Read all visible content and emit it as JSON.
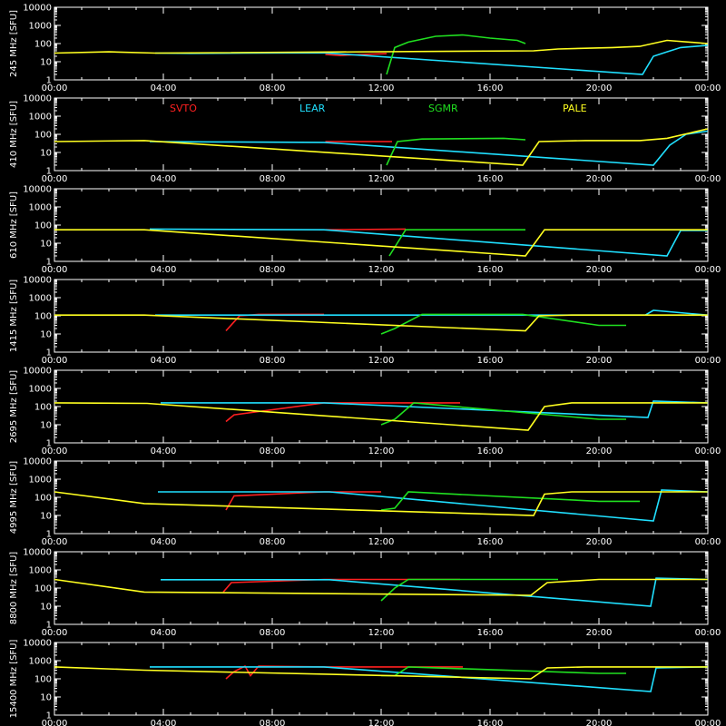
{
  "chart_data": [
    {
      "type": "line",
      "ylabel": "245 MHz [SFU]",
      "xlim": [
        0,
        24
      ],
      "ylim": [
        1,
        10000
      ],
      "y_scale": "log",
      "x_tick_labels": [
        "00:00",
        "04:00",
        "08:00",
        "12:00",
        "16:00",
        "20:00",
        "00:00"
      ],
      "y_tick_labels": [
        "1",
        "10",
        "100",
        "1000",
        "10000"
      ],
      "series": [
        {
          "name": "SVTO",
          "color": "#ff2020",
          "x": [
            9.95,
            10.5,
            11.0,
            11.6,
            12.2
          ],
          "y": [
            25,
            22,
            24,
            26,
            28
          ]
        },
        {
          "name": "LEAR",
          "color": "#20e0ff",
          "x": [
            3.7,
            5,
            7,
            9.9,
            21.6,
            22.0,
            22.5,
            23.0,
            23.99
          ],
          "y": [
            30,
            29,
            30,
            31,
            2,
            20,
            35,
            60,
            80
          ]
        },
        {
          "name": "SGMR",
          "color": "#20e020",
          "x": [
            12.2,
            12.5,
            13.0,
            14.0,
            15.0,
            16.0,
            17.0,
            17.3
          ],
          "y": [
            2,
            60,
            120,
            250,
            300,
            200,
            150,
            100
          ]
        },
        {
          "name": "PALE",
          "color": "#ffff20",
          "x": [
            0,
            2,
            3.7,
            17.6,
            18.5,
            19.5,
            20.5,
            21.5,
            22.5,
            23.99
          ],
          "y": [
            30,
            35,
            30,
            40,
            50,
            55,
            60,
            70,
            150,
            100
          ]
        }
      ]
    },
    {
      "type": "line",
      "ylabel": "410 MHz [SFU]",
      "xlim": [
        0,
        24
      ],
      "ylim": [
        1,
        10000
      ],
      "y_scale": "log",
      "x_tick_labels": [
        "00:00",
        "04:00",
        "08:00",
        "12:00",
        "16:00",
        "20:00",
        "00:00"
      ],
      "y_tick_labels": [
        "1",
        "10",
        "100",
        "1000",
        "10000"
      ],
      "series": [
        {
          "name": "SVTO",
          "color": "#ff2020",
          "x": [
            9.95,
            11.0,
            12.4
          ],
          "y": [
            40,
            40,
            40
          ]
        },
        {
          "name": "LEAR",
          "color": "#20e0ff",
          "x": [
            3.5,
            6,
            9.9,
            22.0,
            22.6,
            23.2,
            23.99
          ],
          "y": [
            40,
            38,
            36,
            2,
            25,
            100,
            150
          ]
        },
        {
          "name": "SGMR",
          "color": "#20e020",
          "x": [
            12.2,
            12.6,
            13.5,
            16.5,
            17.3
          ],
          "y": [
            2,
            40,
            55,
            60,
            50
          ]
        },
        {
          "name": "PALE",
          "color": "#ffff20",
          "x": [
            0,
            3.3,
            17.2,
            17.8,
            19.5,
            21.5,
            22.5,
            23.99
          ],
          "y": [
            40,
            45,
            2,
            40,
            45,
            45,
            60,
            200
          ]
        }
      ]
    },
    {
      "type": "line",
      "ylabel": "610 MHz [SFU]",
      "xlim": [
        0,
        24
      ],
      "ylim": [
        1,
        10000
      ],
      "y_scale": "log",
      "x_tick_labels": [
        "00:00",
        "04:00",
        "08:00",
        "12:00",
        "16:00",
        "20:00",
        "00:00"
      ],
      "y_tick_labels": [
        "1",
        "10",
        "100",
        "1000",
        "10000"
      ],
      "series": [
        {
          "name": "SVTO",
          "color": "#ff2020",
          "x": [
            9.95,
            12.9
          ],
          "y": [
            55,
            60
          ]
        },
        {
          "name": "LEAR",
          "color": "#20e0ff",
          "x": [
            3.5,
            9.9,
            22.5,
            23.0,
            23.99
          ],
          "y": [
            60,
            55,
            2,
            50,
            50
          ]
        },
        {
          "name": "SGMR",
          "color": "#20e020",
          "x": [
            12.3,
            12.9,
            17.3
          ],
          "y": [
            2,
            55,
            55
          ]
        },
        {
          "name": "PALE",
          "color": "#ffff20",
          "x": [
            0,
            3.3,
            17.3,
            18.0,
            21.5,
            23.99
          ],
          "y": [
            55,
            55,
            2,
            55,
            55,
            55
          ]
        }
      ]
    },
    {
      "type": "line",
      "ylabel": "1415 MHz [SFU]",
      "xlim": [
        0,
        24
      ],
      "ylim": [
        1,
        10000
      ],
      "y_scale": "log",
      "x_tick_labels": [
        "00:00",
        "04:00",
        "08:00",
        "12:00",
        "16:00",
        "20:00",
        "00:00"
      ],
      "y_tick_labels": [
        "1",
        "10",
        "100",
        "1000",
        "10000"
      ],
      "series": [
        {
          "name": "SVTO",
          "color": "#ff2020",
          "x": [
            6.3,
            6.8,
            7.5,
            9.9
          ],
          "y": [
            15,
            100,
            120,
            120
          ]
        },
        {
          "name": "LEAR",
          "color": "#20e0ff",
          "x": [
            3.7,
            6.3,
            9.9,
            21.7,
            22.0,
            23.99
          ],
          "y": [
            110,
            110,
            110,
            110,
            200,
            110
          ]
        },
        {
          "name": "SGMR",
          "color": "#20e020",
          "x": [
            12.0,
            12.5,
            13.5,
            17.2,
            20.0,
            21.0
          ],
          "y": [
            10,
            20,
            120,
            120,
            30,
            30
          ]
        },
        {
          "name": "PALE",
          "color": "#ffff20",
          "x": [
            0,
            3.3,
            17.3,
            17.8,
            19.0,
            23.99
          ],
          "y": [
            110,
            110,
            15,
            100,
            110,
            110
          ]
        }
      ]
    },
    {
      "type": "line",
      "ylabel": "2695 MHz [SFU]",
      "xlim": [
        0,
        24
      ],
      "ylim": [
        1,
        10000
      ],
      "y_scale": "log",
      "x_tick_labels": [
        "00:00",
        "04:00",
        "08:00",
        "12:00",
        "16:00",
        "20:00",
        "00:00"
      ],
      "y_tick_labels": [
        "1",
        "10",
        "100",
        "1000",
        "10000"
      ],
      "series": [
        {
          "name": "SVTO",
          "color": "#ff2020",
          "x": [
            6.3,
            6.6,
            9.9,
            14.9
          ],
          "y": [
            15,
            35,
            160,
            160
          ]
        },
        {
          "name": "LEAR",
          "color": "#20e0ff",
          "x": [
            3.9,
            6.3,
            9.9,
            21.8,
            22.0,
            23.99
          ],
          "y": [
            160,
            160,
            160,
            25,
            200,
            160
          ]
        },
        {
          "name": "SGMR",
          "color": "#20e020",
          "x": [
            12.0,
            12.5,
            13.2,
            20.0,
            21.0
          ],
          "y": [
            10,
            20,
            160,
            20,
            20
          ]
        },
        {
          "name": "PALE",
          "color": "#ffff20",
          "x": [
            0,
            3.4,
            17.4,
            18.0,
            19.0,
            23.99
          ],
          "y": [
            160,
            150,
            5,
            100,
            160,
            160
          ]
        }
      ]
    },
    {
      "type": "line",
      "ylabel": "4995 MHz [SFU]",
      "xlim": [
        0,
        24
      ],
      "ylim": [
        1,
        10000
      ],
      "y_scale": "log",
      "x_tick_labels": [
        "00:00",
        "04:00",
        "08:00",
        "12:00",
        "16:00",
        "20:00",
        "00:00"
      ],
      "y_tick_labels": [
        "1",
        "10",
        "100",
        "1000",
        "10000"
      ],
      "series": [
        {
          "name": "SVTO",
          "color": "#ff2020",
          "x": [
            6.3,
            6.6,
            9.9,
            12.0
          ],
          "y": [
            20,
            120,
            200,
            200
          ]
        },
        {
          "name": "LEAR",
          "color": "#20e0ff",
          "x": [
            3.8,
            6.3,
            10.1,
            22.0,
            22.3,
            23.99
          ],
          "y": [
            200,
            200,
            200,
            5,
            250,
            200
          ]
        },
        {
          "name": "SGMR",
          "color": "#20e020",
          "x": [
            12.0,
            12.5,
            13.0,
            20.0,
            21.5
          ],
          "y": [
            20,
            25,
            200,
            60,
            60
          ]
        },
        {
          "name": "PALE",
          "color": "#ffff20",
          "x": [
            0,
            3.3,
            17.6,
            18.0,
            19.0,
            23.99
          ],
          "y": [
            200,
            45,
            10,
            150,
            200,
            200
          ]
        }
      ]
    },
    {
      "type": "line",
      "ylabel": "8800 MHz [SFU]",
      "xlim": [
        0,
        24
      ],
      "ylim": [
        1,
        10000
      ],
      "y_scale": "log",
      "x_tick_labels": [
        "00:00",
        "04:00",
        "08:00",
        "12:00",
        "16:00",
        "20:00",
        "00:00"
      ],
      "y_tick_labels": [
        "1",
        "10",
        "100",
        "1000",
        "10000"
      ],
      "series": [
        {
          "name": "SVTO",
          "color": "#ff2020",
          "x": [
            6.2,
            6.5,
            9.9,
            14.9
          ],
          "y": [
            60,
            200,
            300,
            300
          ]
        },
        {
          "name": "LEAR",
          "color": "#20e0ff",
          "x": [
            3.9,
            6.2,
            10.1,
            21.9,
            22.1,
            23.99
          ],
          "y": [
            290,
            290,
            290,
            10,
            350,
            300
          ]
        },
        {
          "name": "SGMR",
          "color": "#20e020",
          "x": [
            12.0,
            12.5,
            13.0,
            18.5
          ],
          "y": [
            20,
            100,
            300,
            300
          ]
        },
        {
          "name": "PALE",
          "color": "#ffff20",
          "x": [
            0,
            3.3,
            17.5,
            18.1,
            20.0,
            23.99
          ],
          "y": [
            300,
            60,
            40,
            200,
            300,
            300
          ]
        }
      ]
    },
    {
      "type": "line",
      "ylabel": "15400 MHz [SFU]",
      "xlim": [
        0,
        24
      ],
      "ylim": [
        1,
        10000
      ],
      "y_scale": "log",
      "x_tick_labels": [
        "00:00",
        "04:00",
        "08:00",
        "12:00",
        "16:00",
        "20:00",
        "00:00"
      ],
      "y_tick_labels": [
        "1",
        "10",
        "100",
        "1000",
        "10000"
      ],
      "series": [
        {
          "name": "SVTO",
          "color": "#ff2020",
          "x": [
            6.3,
            6.6,
            7.0,
            7.2,
            7.5,
            9.9,
            12.0,
            15.0
          ],
          "y": [
            100,
            250,
            500,
            150,
            500,
            450,
            450,
            450
          ]
        },
        {
          "name": "LEAR",
          "color": "#20e0ff",
          "x": [
            3.5,
            6.3,
            9.9,
            21.9,
            22.1,
            23.99
          ],
          "y": [
            450,
            450,
            450,
            20,
            400,
            450
          ]
        },
        {
          "name": "SGMR",
          "color": "#20e020",
          "x": [
            12.0,
            12.5,
            13.0,
            20.0,
            21.0
          ],
          "y": [
            150,
            150,
            450,
            200,
            200
          ]
        },
        {
          "name": "PALE",
          "color": "#ffff20",
          "x": [
            0,
            3.3,
            17.5,
            18.1,
            19.5,
            23.99
          ],
          "y": [
            450,
            300,
            100,
            400,
            450,
            450
          ]
        }
      ]
    }
  ],
  "legend": [
    {
      "label": "SVTO",
      "color": "#ff2020"
    },
    {
      "label": "LEAR",
      "color": "#20e0ff"
    },
    {
      "label": "SGMR",
      "color": "#20e020"
    },
    {
      "label": "PALE",
      "color": "#ffff20"
    }
  ]
}
